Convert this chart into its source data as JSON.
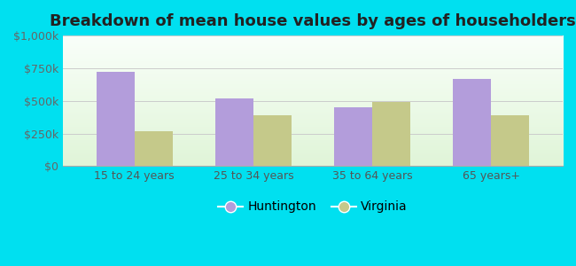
{
  "title": "Breakdown of mean house values by ages of householders",
  "categories": [
    "15 to 24 years",
    "25 to 34 years",
    "35 to 64 years",
    "65 years+"
  ],
  "huntington_values": [
    720000,
    520000,
    450000,
    670000
  ],
  "virginia_values": [
    270000,
    390000,
    490000,
    390000
  ],
  "huntington_color": "#b39ddb",
  "virginia_color": "#c5c98a",
  "background_outer": "#00e0f0",
  "ylim": [
    0,
    1000000
  ],
  "yticks": [
    0,
    250000,
    500000,
    750000,
    1000000
  ],
  "ytick_labels": [
    "$0",
    "$250k",
    "$500k",
    "$750k",
    "$1,000k"
  ],
  "legend_huntington": "Huntington",
  "legend_virginia": "Virginia",
  "title_fontsize": 13,
  "tick_fontsize": 9,
  "legend_fontsize": 10,
  "bar_width": 0.32,
  "grid_color": "#cccccc"
}
